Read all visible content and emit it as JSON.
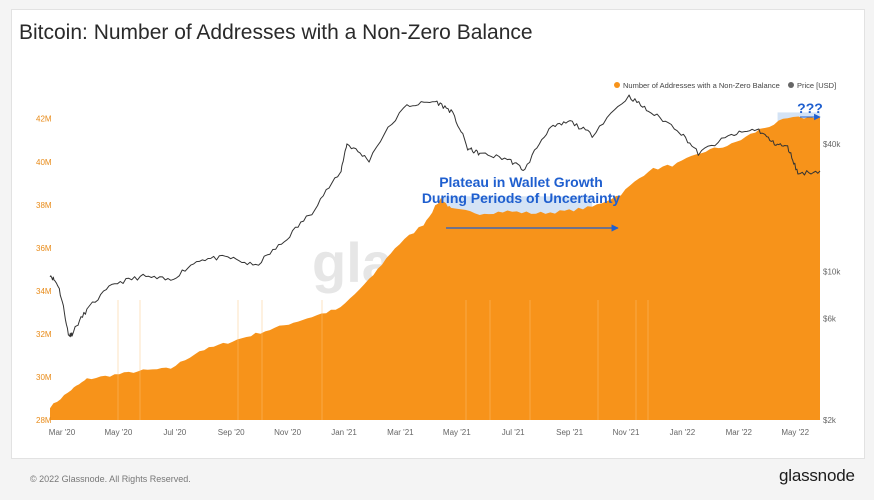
{
  "title": "Bitcoin: Number of Addresses with a Non-Zero Balance",
  "footer": "© 2022 Glassnode. All Rights Reserved.",
  "brand": "glassnode",
  "watermark": "glassnode",
  "colors": {
    "addresses": "#f7931a",
    "price": "#333333",
    "annotation": "#1f5fcf",
    "plateau_highlight": "#cfe0f4"
  },
  "chart_data": {
    "type": "area",
    "title": "Bitcoin: Number of Addresses with a Non-Zero Balance",
    "x_ticks": [
      "Mar '20",
      "May '20",
      "Jul '20",
      "Sep '20",
      "Nov '20",
      "Jan '21",
      "Mar '21",
      "May '21",
      "Jul '21",
      "Sep '21",
      "Nov '21",
      "Jan '22",
      "Mar '22",
      "May '22"
    ],
    "left_axis": {
      "ticks": [
        "28M",
        "30M",
        "32M",
        "34M",
        "36M",
        "38M",
        "40M",
        "42M"
      ],
      "range": [
        28,
        43.8
      ],
      "unit": "M"
    },
    "right_axis": {
      "ticks": [
        "$2k",
        "$6k",
        "$10k",
        "$40k"
      ],
      "scale": "log",
      "range": [
        2000,
        80000
      ]
    },
    "legend": {
      "position": "top-right",
      "items": [
        "Number of Addresses with a Non-Zero Balance",
        "Price [USD]"
      ]
    },
    "grid": false,
    "series": [
      {
        "name": "Number of Addresses with a Non-Zero Balance",
        "type": "area",
        "axis": "left",
        "x": [
          "2020-02-21",
          "2020-03-15",
          "2020-04-01",
          "2020-05-01",
          "2020-06-01",
          "2020-07-01",
          "2020-08-01",
          "2020-09-01",
          "2020-10-01",
          "2020-11-01",
          "2020-12-01",
          "2021-01-01",
          "2021-02-01",
          "2021-03-01",
          "2021-04-01",
          "2021-04-20",
          "2021-05-01",
          "2021-06-01",
          "2021-07-01",
          "2021-08-01",
          "2021-09-01",
          "2021-10-01",
          "2021-11-01",
          "2021-12-01",
          "2022-01-01",
          "2022-02-01",
          "2022-03-01",
          "2022-04-01",
          "2022-05-01",
          "2022-06-05"
        ],
        "values": [
          28.6,
          29.4,
          29.9,
          30.1,
          30.3,
          30.4,
          31.2,
          31.6,
          32.0,
          32.4,
          32.8,
          33.2,
          34.5,
          36.0,
          37.1,
          38.3,
          37.8,
          37.6,
          37.7,
          37.6,
          37.7,
          37.9,
          38.5,
          39.6,
          39.9,
          40.5,
          40.8,
          41.5,
          42.0,
          42.1
        ]
      },
      {
        "name": "Price [USD]",
        "type": "line",
        "axis": "right",
        "x": [
          "2020-02-21",
          "2020-03-01",
          "2020-03-12",
          "2020-03-16",
          "2020-04-01",
          "2020-05-01",
          "2020-06-01",
          "2020-07-01",
          "2020-08-01",
          "2020-09-01",
          "2020-10-01",
          "2020-11-01",
          "2020-12-01",
          "2021-01-01",
          "2021-01-08",
          "2021-02-01",
          "2021-03-14",
          "2021-04-14",
          "2021-05-01",
          "2021-05-19",
          "2021-06-01",
          "2021-07-01",
          "2021-07-20",
          "2021-08-15",
          "2021-09-07",
          "2021-10-01",
          "2021-11-10",
          "2021-12-01",
          "2022-01-01",
          "2022-01-24",
          "2022-03-01",
          "2022-03-29",
          "2022-04-15",
          "2022-05-01",
          "2022-05-12",
          "2022-06-05"
        ],
        "values": [
          9700,
          8600,
          5000,
          5100,
          6600,
          8800,
          9500,
          9100,
          11400,
          11700,
          10600,
          13800,
          19000,
          29000,
          40000,
          33500,
          60500,
          63500,
          57000,
          38000,
          36000,
          34000,
          30000,
          47000,
          51000,
          44000,
          67000,
          57000,
          47000,
          36000,
          44000,
          47000,
          40500,
          38500,
          29000,
          29800
        ]
      }
    ],
    "annotations": [
      {
        "text": "Plateau in Wallet Growth",
        "line": 1
      },
      {
        "text": "During Periods of Uncertainty",
        "line": 2
      },
      {
        "text": "???"
      }
    ]
  }
}
